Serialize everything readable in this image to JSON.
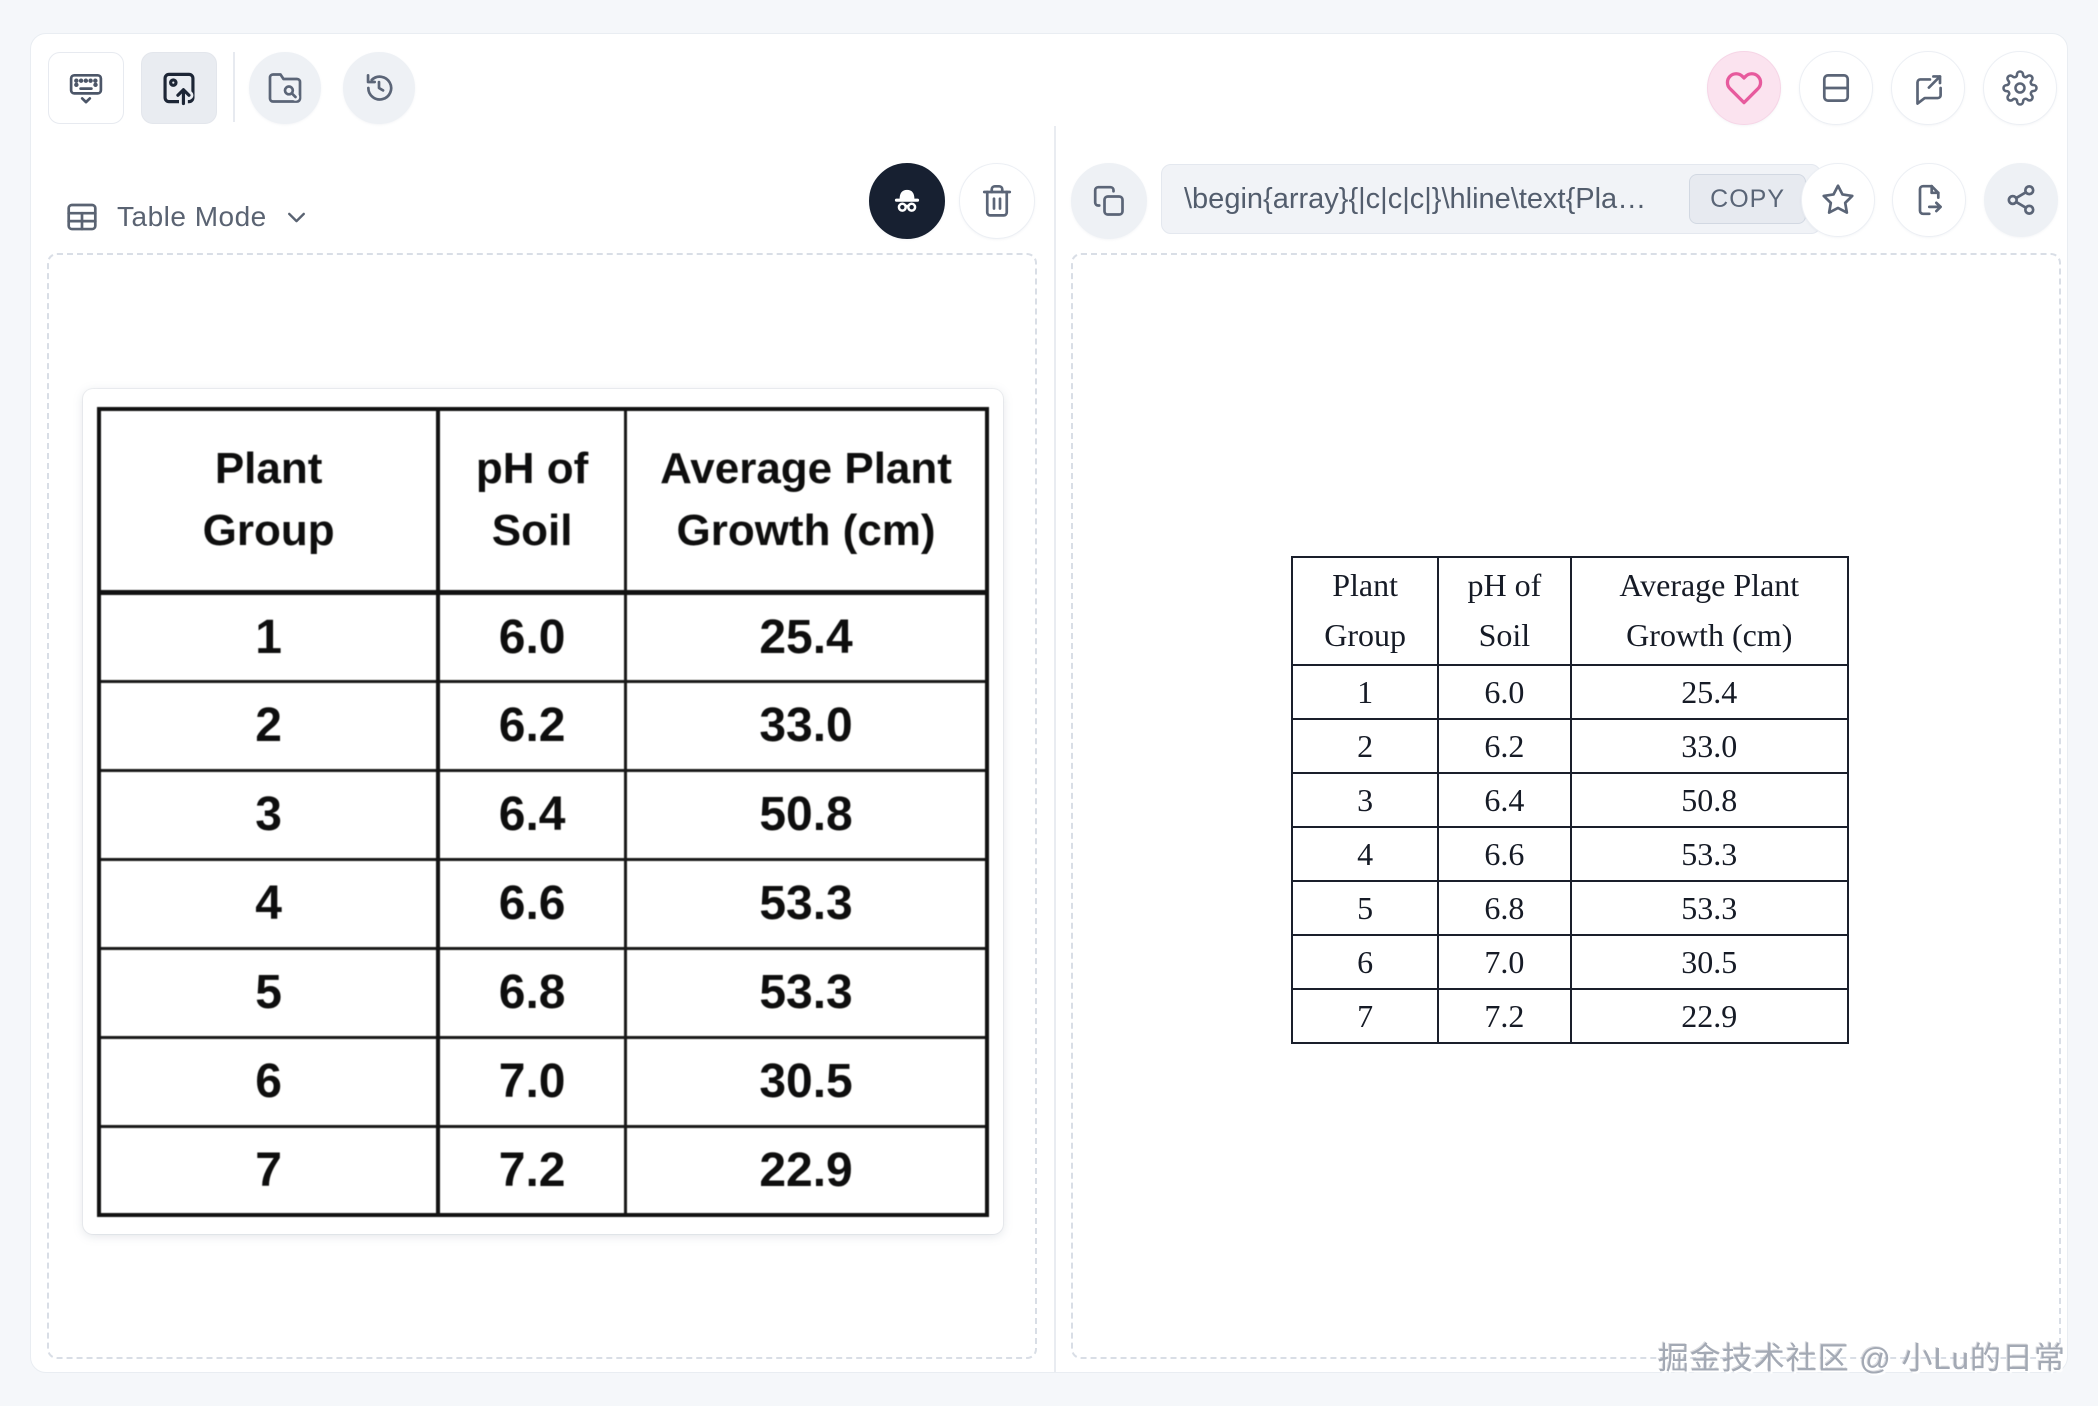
{
  "top_toolbar": {
    "left_icons": [
      "keyboard",
      "image-upload",
      "folder-search",
      "history"
    ],
    "right_icons": [
      "favorite-heart",
      "split-view",
      "feedback",
      "settings"
    ]
  },
  "left_panel": {
    "mode_selector": {
      "label": "Table Mode"
    },
    "header_icons": [
      "incognito",
      "trash"
    ]
  },
  "right_panel": {
    "header_icons": [
      "copy",
      "star",
      "export-file",
      "share"
    ],
    "latex_field": {
      "value": "\\begin{array}{|c|c|c|}\\hline\\text{Pla…",
      "copy_label": "COPY"
    }
  },
  "table": {
    "headers": [
      "Plant\nGroup",
      "pH of\nSoil",
      "Average Plant\nGrowth (cm)"
    ],
    "rows": [
      [
        "1",
        "6.0",
        "25.4"
      ],
      [
        "2",
        "6.2",
        "33.0"
      ],
      [
        "3",
        "6.4",
        "50.8"
      ],
      [
        "4",
        "6.6",
        "53.3"
      ],
      [
        "5",
        "6.8",
        "53.3"
      ],
      [
        "6",
        "7.0",
        "30.5"
      ],
      [
        "7",
        "7.2",
        "22.9"
      ]
    ]
  },
  "watermark": "掘金技术社区 @ 小Lu的日常",
  "colors": {
    "accent_pink": "#e75a9d",
    "icon_slate": "#5b6577",
    "dark_button": "#172031",
    "dashed_border": "#d9dee6",
    "page_background": "#f5f7fa"
  }
}
